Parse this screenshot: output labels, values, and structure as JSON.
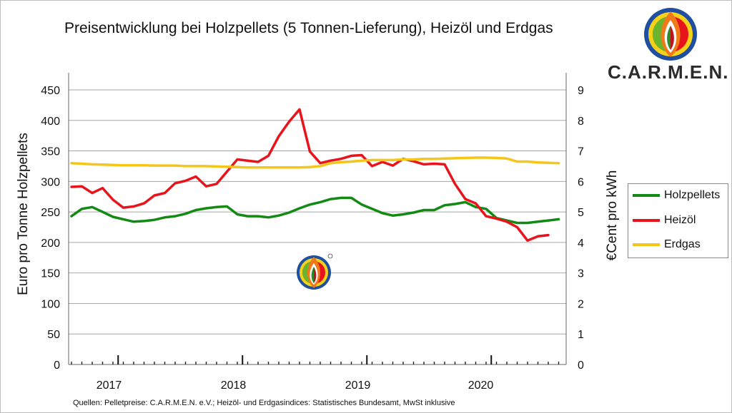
{
  "title": "Preisentwicklung bei Holzpellets (5 Tonnen-Lieferung), Heizöl und Erdgas",
  "brand": "C.A.R.M.E.N.",
  "source": "Quellen:  Pelletpreise:  C.A.R.M.E.N. e.V.; Heizöl- und Erdgasindices: Statistisches Bundesamt, MwSt inklusive",
  "colors": {
    "holzpellets": "#138a13",
    "heizoel": "#e8141c",
    "erdgas": "#f5c518"
  },
  "chart_data": {
    "type": "line",
    "title": "Preisentwicklung bei Holzpellets (5 Tonnen-Lieferung), Heizöl und Erdgas",
    "xlabel": "",
    "ylabel": "Euro pro Tonne Holzpellets",
    "y2label": "€Cent pro kWh",
    "ylim": [
      0,
      450
    ],
    "y2lim": [
      0,
      9
    ],
    "yticks": [
      "0",
      "50",
      "100",
      "150",
      "200",
      "250",
      "300",
      "350",
      "400",
      "450"
    ],
    "y2ticks": [
      "0",
      "1",
      "2",
      "3",
      "4",
      "5",
      "6",
      "7",
      "8",
      "9"
    ],
    "year_labels": [
      "2017",
      "2018",
      "2019",
      "2020"
    ],
    "grid": true,
    "legend": "right",
    "x_start": "2016-08",
    "x_step": "month",
    "series": [
      {
        "name": "Holzpellets",
        "axis": "left",
        "values": [
          243,
          255,
          258,
          250,
          242,
          238,
          234,
          235,
          237,
          241,
          243,
          247,
          253,
          256,
          258,
          259,
          246,
          243,
          243,
          241,
          244,
          249,
          256,
          262,
          266,
          271,
          273,
          273,
          262,
          255,
          248,
          244,
          246,
          249,
          253,
          253,
          261,
          263,
          266,
          258,
          255,
          240,
          236,
          232,
          232,
          234,
          236,
          238
        ]
      },
      {
        "name": "Heizöl",
        "axis": "left",
        "values": [
          291,
          292,
          281,
          289,
          270,
          257,
          259,
          264,
          277,
          281,
          297,
          301,
          308,
          292,
          296,
          316,
          336,
          334,
          332,
          342,
          374,
          398,
          418,
          349,
          330,
          334,
          337,
          342,
          343,
          325,
          332,
          326,
          337,
          333,
          328,
          329,
          328,
          296,
          271,
          264,
          243,
          239,
          234,
          225,
          203,
          210,
          212
        ]
      },
      {
        "name": "Erdgas",
        "axis": "right",
        "values": [
          6.6,
          6.58,
          6.56,
          6.55,
          6.54,
          6.53,
          6.53,
          6.53,
          6.52,
          6.52,
          6.52,
          6.5,
          6.5,
          6.5,
          6.49,
          6.48,
          6.47,
          6.46,
          6.46,
          6.46,
          6.46,
          6.46,
          6.46,
          6.47,
          6.5,
          6.6,
          6.63,
          6.65,
          6.68,
          6.7,
          6.7,
          6.7,
          6.72,
          6.72,
          6.74,
          6.74,
          6.75,
          6.76,
          6.77,
          6.78,
          6.78,
          6.77,
          6.75,
          6.65,
          6.65,
          6.62,
          6.61,
          6.6
        ]
      }
    ]
  }
}
